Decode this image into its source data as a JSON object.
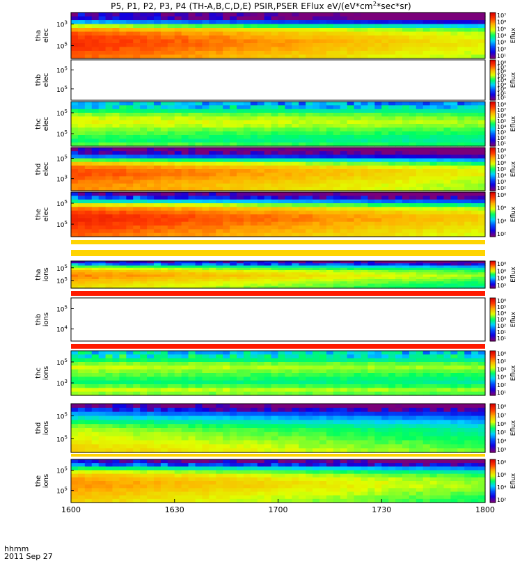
{
  "title": {
    "prefix": "P5, P1, P2, P3, P4 (TH-A,B,C,D,E) PSIR,PSER EFlux eV/(eV*cm",
    "sup": "2",
    "suffix": "*sec*sr)"
  },
  "footer": {
    "time_label": "hhmm",
    "date_label": "2011 Sep 27"
  },
  "colors": {
    "colorbar_scale": [
      "#7a007a",
      "#1000e0",
      "#0050ff",
      "#00d0ff",
      "#00ff60",
      "#e0ff00",
      "#ffb000",
      "#ff3a00",
      "#d80000"
    ]
  },
  "chart_data": [
    {
      "type": "heatmap",
      "probe": "tha",
      "species": "elec",
      "ylabel": [
        "tha",
        "elec"
      ],
      "y_ticks": [
        {
          "base": "10",
          "exp": "3"
        },
        {
          "base": "10",
          "exp": "5"
        }
      ],
      "colorbar": {
        "label": "Eflux",
        "ticks": [
          "10⁷",
          "10⁸",
          "10⁵",
          "10⁴",
          "10³",
          "10²",
          "10¹"
        ]
      },
      "energy_rows": [
        0.1,
        0.12,
        0.35,
        0.62,
        0.78,
        0.85,
        0.88,
        0.9,
        0.9,
        0.88,
        0.86,
        0.84
      ],
      "trend": -0.25
    },
    {
      "type": "heatmap",
      "probe": "thb",
      "species": "elec",
      "ylabel": [
        "thb",
        "elec"
      ],
      "y_ticks": [
        {
          "base": "10",
          "exp": "5"
        },
        {
          "base": "10",
          "exp": "5"
        }
      ],
      "colorbar": {
        "label": "Eflux",
        "ticks": [
          "10⁸",
          "10⁷",
          "10⁶",
          "10⁵",
          "10⁴",
          "10³",
          "10²",
          "10¹",
          "10¹"
        ]
      },
      "energy_rows": [],
      "trend": 0
    },
    {
      "type": "heatmap",
      "probe": "thc",
      "species": "elec",
      "ylabel": [
        "thc",
        "elec"
      ],
      "y_ticks": [
        {
          "base": "10",
          "exp": "5"
        },
        {
          "base": "10",
          "exp": "5"
        }
      ],
      "colorbar": {
        "label": "Eflux",
        "ticks": [
          "10⁸",
          "10⁷",
          "10⁶",
          "10⁵",
          "10⁴",
          "10³",
          "10²",
          "10¹"
        ]
      },
      "energy_rows": [
        0.35,
        0.42,
        0.5,
        0.58,
        0.62,
        0.64,
        0.62,
        0.58,
        0.55,
        0.52,
        0.5,
        0.55
      ],
      "trend": -0.05
    },
    {
      "type": "heatmap",
      "probe": "thd",
      "species": "elec",
      "ylabel": [
        "thd",
        "elec"
      ],
      "y_ticks": [
        {
          "base": "10",
          "exp": "5"
        },
        {
          "base": "10",
          "exp": "3"
        }
      ],
      "colorbar": {
        "label": "Eflux",
        "ticks": [
          "10⁸",
          "10⁷",
          "10⁶",
          "10⁵",
          "10⁴",
          "10³",
          "10²"
        ]
      },
      "energy_rows": [
        0.05,
        0.12,
        0.3,
        0.55,
        0.72,
        0.82,
        0.86,
        0.86,
        0.84,
        0.82,
        0.8,
        0.8
      ],
      "trend": -0.22
    },
    {
      "type": "heatmap",
      "probe": "the",
      "species": "elec",
      "ylabel": [
        "the",
        "elec"
      ],
      "y_ticks": [
        {
          "base": "10",
          "exp": "5"
        },
        {
          "base": "10",
          "exp": "5"
        }
      ],
      "colorbar": {
        "label": "Eflux",
        "ticks": [
          "10⁸",
          "10⁶",
          "10⁴",
          "10²"
        ]
      },
      "energy_rows": [
        0.1,
        0.25,
        0.45,
        0.68,
        0.82,
        0.88,
        0.92,
        0.92,
        0.9,
        0.88,
        0.86,
        0.84
      ],
      "trend": -0.22
    },
    {
      "type": "heatmap",
      "probe": "tha",
      "species": "ions",
      "ylabel": [
        "tha",
        "ions"
      ],
      "y_ticks": [
        {
          "base": "10",
          "exp": "5"
        },
        {
          "base": "10",
          "exp": "5"
        }
      ],
      "colorbar": {
        "label": "Eflux",
        "ticks": [
          "10⁸",
          "10⁶",
          "10⁴",
          "10²"
        ]
      },
      "energy_rows": [
        0.18,
        0.35,
        0.55,
        0.66,
        0.74,
        0.78,
        0.8,
        0.78,
        0.75,
        0.72,
        0.7,
        0.68
      ],
      "trend": -0.22
    },
    {
      "type": "heatmap",
      "probe": "thb",
      "species": "ions",
      "ylabel": [
        "thb",
        "ions"
      ],
      "y_ticks": [
        {
          "base": "10",
          "exp": "5"
        },
        {
          "base": "10",
          "exp": "4"
        }
      ],
      "colorbar": {
        "label": "Eflux",
        "ticks": [
          "10⁶",
          "10⁵",
          "10⁴",
          "10³",
          "10²",
          "10¹",
          "10¹"
        ]
      },
      "energy_rows": [],
      "trend": 0
    },
    {
      "type": "heatmap",
      "probe": "thc",
      "species": "ions",
      "ylabel": [
        "thc",
        "ions"
      ],
      "y_ticks": [
        {
          "base": "10",
          "exp": "5"
        },
        {
          "base": "10",
          "exp": "3"
        }
      ],
      "colorbar": {
        "label": "Eflux",
        "ticks": [
          "10⁶",
          "10⁵",
          "10⁴",
          "10³",
          "10²",
          "10¹"
        ]
      },
      "energy_rows": [
        0.4,
        0.46,
        0.5,
        0.58,
        0.62,
        0.58,
        0.55,
        0.52,
        0.5,
        0.55,
        0.62,
        0.58
      ],
      "trend": -0.04
    },
    {
      "type": "heatmap",
      "probe": "thd",
      "species": "ions",
      "ylabel": [
        "thd",
        "ions"
      ],
      "y_ticks": [
        {
          "base": "10",
          "exp": "5"
        },
        {
          "base": "10",
          "exp": "5"
        }
      ],
      "colorbar": {
        "label": "Eflux",
        "ticks": [
          "10⁸",
          "10⁷",
          "10⁶",
          "10⁵",
          "10⁴",
          "10³"
        ]
      },
      "energy_rows": [
        0.04,
        0.18,
        0.32,
        0.42,
        0.5,
        0.56,
        0.6,
        0.62,
        0.64,
        0.66,
        0.68,
        0.7
      ],
      "trend": -0.15
    },
    {
      "type": "heatmap",
      "probe": "the",
      "species": "ions",
      "ylabel": [
        "the",
        "ions"
      ],
      "y_ticks": [
        {
          "base": "10",
          "exp": "5"
        },
        {
          "base": "10",
          "exp": "5"
        }
      ],
      "colorbar": {
        "label": "Eflux",
        "ticks": [
          "10⁸",
          "10⁶",
          "10⁴",
          "10²"
        ]
      },
      "energy_rows": [
        0.12,
        0.28,
        0.5,
        0.64,
        0.72,
        0.76,
        0.78,
        0.78,
        0.76,
        0.74,
        0.72,
        0.7
      ],
      "trend": -0.2
    }
  ],
  "x_axis": {
    "ticks": [
      "1600",
      "1630",
      "1700",
      "1730",
      "1800"
    ]
  }
}
